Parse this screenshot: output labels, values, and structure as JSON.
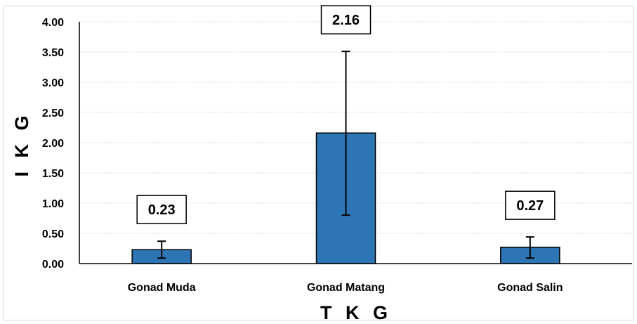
{
  "chart_data": {
    "type": "bar",
    "categories": [
      "Gonad Muda",
      "Gonad Matang",
      "Gonad Salin"
    ],
    "values": [
      0.23,
      2.16,
      0.27
    ],
    "error_low": [
      0.09,
      0.8,
      0.09
    ],
    "error_high": [
      0.37,
      3.51,
      0.44
    ],
    "data_labels": [
      "0.23",
      "2.16",
      "0.27"
    ],
    "xlabel": "T K G",
    "ylabel": "I K G",
    "ylim": [
      0,
      4
    ],
    "yticks": [
      "0.00",
      "0.50",
      "1.00",
      "1.50",
      "2.00",
      "2.50",
      "3.00",
      "3.50",
      "4.00"
    ],
    "grid": true,
    "legend": "none",
    "bar_color": "#2e75b6",
    "bar_edge_color": "#000000"
  }
}
